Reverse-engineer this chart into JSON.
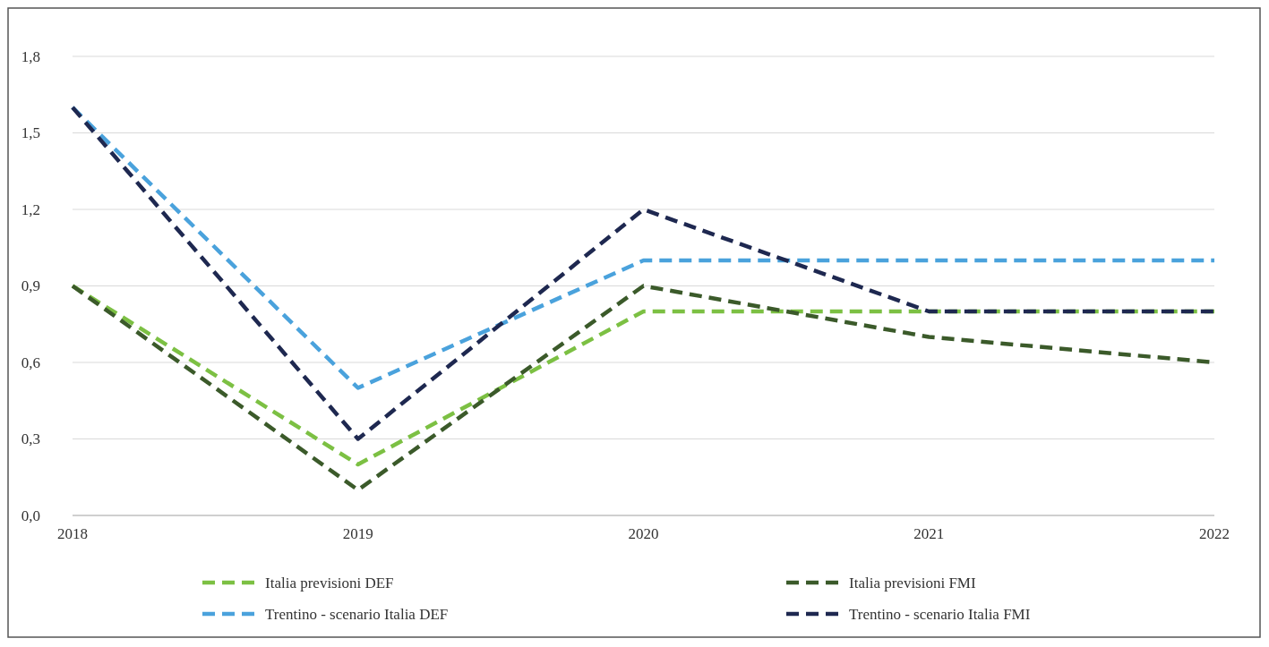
{
  "chart_data": {
    "type": "line",
    "categories": [
      "2018",
      "2019",
      "2020",
      "2021",
      "2022"
    ],
    "series": [
      {
        "name": "Italia previsioni DEF",
        "color": "#7cc043",
        "values": [
          0.9,
          0.2,
          0.8,
          0.8,
          0.8
        ]
      },
      {
        "name": "Italia previsioni FMI",
        "color": "#3b5a2a",
        "values": [
          0.9,
          0.1,
          0.9,
          0.7,
          0.6
        ]
      },
      {
        "name": "Trentino - scenario Italia DEF",
        "color": "#4aa2dc",
        "values": [
          1.6,
          0.5,
          1.0,
          1.0,
          1.0
        ]
      },
      {
        "name": "Trentino - scenario Italia FMI",
        "color": "#1e2850",
        "values": [
          1.6,
          0.3,
          1.2,
          0.8,
          0.8
        ]
      }
    ],
    "ylim": [
      0,
      1.8
    ],
    "yticks": [
      {
        "value": 0,
        "label": "0,0"
      },
      {
        "value": 0.3,
        "label": "0,3"
      },
      {
        "value": 0.6,
        "label": "0,6"
      },
      {
        "value": 0.9,
        "label": "0,9"
      },
      {
        "value": 1.2,
        "label": "1,2"
      },
      {
        "value": 1.5,
        "label": "1,5"
      },
      {
        "value": 1.8,
        "label": "1,8"
      }
    ],
    "grid": "y",
    "legend": "bottom",
    "line_style": "dashed",
    "marker": "none"
  }
}
